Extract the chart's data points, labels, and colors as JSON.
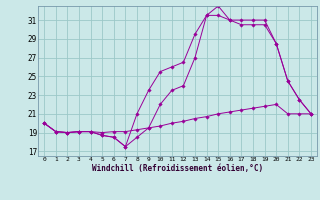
{
  "xlabel": "Windchill (Refroidissement éolien,°C)",
  "background_color": "#cbe8e8",
  "grid_color": "#9cc8c8",
  "line_color": "#990099",
  "x_ticks": [
    0,
    1,
    2,
    3,
    4,
    5,
    6,
    7,
    8,
    9,
    10,
    11,
    12,
    13,
    14,
    15,
    16,
    17,
    18,
    19,
    20,
    21,
    22,
    23
  ],
  "y_ticks": [
    17,
    19,
    21,
    23,
    25,
    27,
    29,
    31
  ],
  "ylim": [
    16.5,
    32.5
  ],
  "xlim": [
    -0.5,
    23.5
  ],
  "line1_x": [
    0,
    1,
    2,
    3,
    4,
    5,
    6,
    7,
    8,
    9,
    10,
    11,
    12,
    13,
    14,
    15,
    16,
    17,
    18,
    19,
    20,
    21,
    22,
    23
  ],
  "line1_y": [
    20.0,
    19.1,
    19.0,
    19.1,
    19.1,
    19.0,
    19.1,
    19.1,
    19.3,
    19.5,
    19.7,
    20.0,
    20.2,
    20.5,
    20.7,
    21.0,
    21.2,
    21.4,
    21.6,
    21.8,
    22.0,
    21.0,
    21.0,
    21.0
  ],
  "line2_x": [
    0,
    1,
    2,
    3,
    4,
    5,
    6,
    7,
    8,
    9,
    10,
    11,
    12,
    13,
    14,
    15,
    16,
    17,
    18,
    19,
    20,
    21,
    22,
    23
  ],
  "line2_y": [
    20.0,
    19.1,
    19.0,
    19.1,
    19.1,
    18.7,
    18.5,
    17.5,
    21.0,
    23.5,
    25.5,
    26.0,
    26.5,
    29.5,
    31.5,
    31.5,
    31.0,
    30.5,
    30.5,
    30.5,
    28.5,
    24.5,
    22.5,
    21.0
  ],
  "line3_x": [
    0,
    1,
    2,
    3,
    4,
    5,
    6,
    7,
    8,
    9,
    10,
    11,
    12,
    13,
    14,
    15,
    16,
    17,
    18,
    19,
    20,
    21,
    22,
    23
  ],
  "line3_y": [
    20.0,
    19.1,
    19.0,
    19.1,
    19.1,
    18.7,
    18.5,
    17.5,
    18.5,
    19.5,
    22.0,
    23.5,
    24.0,
    27.0,
    31.5,
    32.5,
    31.0,
    31.0,
    31.0,
    31.0,
    28.5,
    24.5,
    22.5,
    21.0
  ]
}
